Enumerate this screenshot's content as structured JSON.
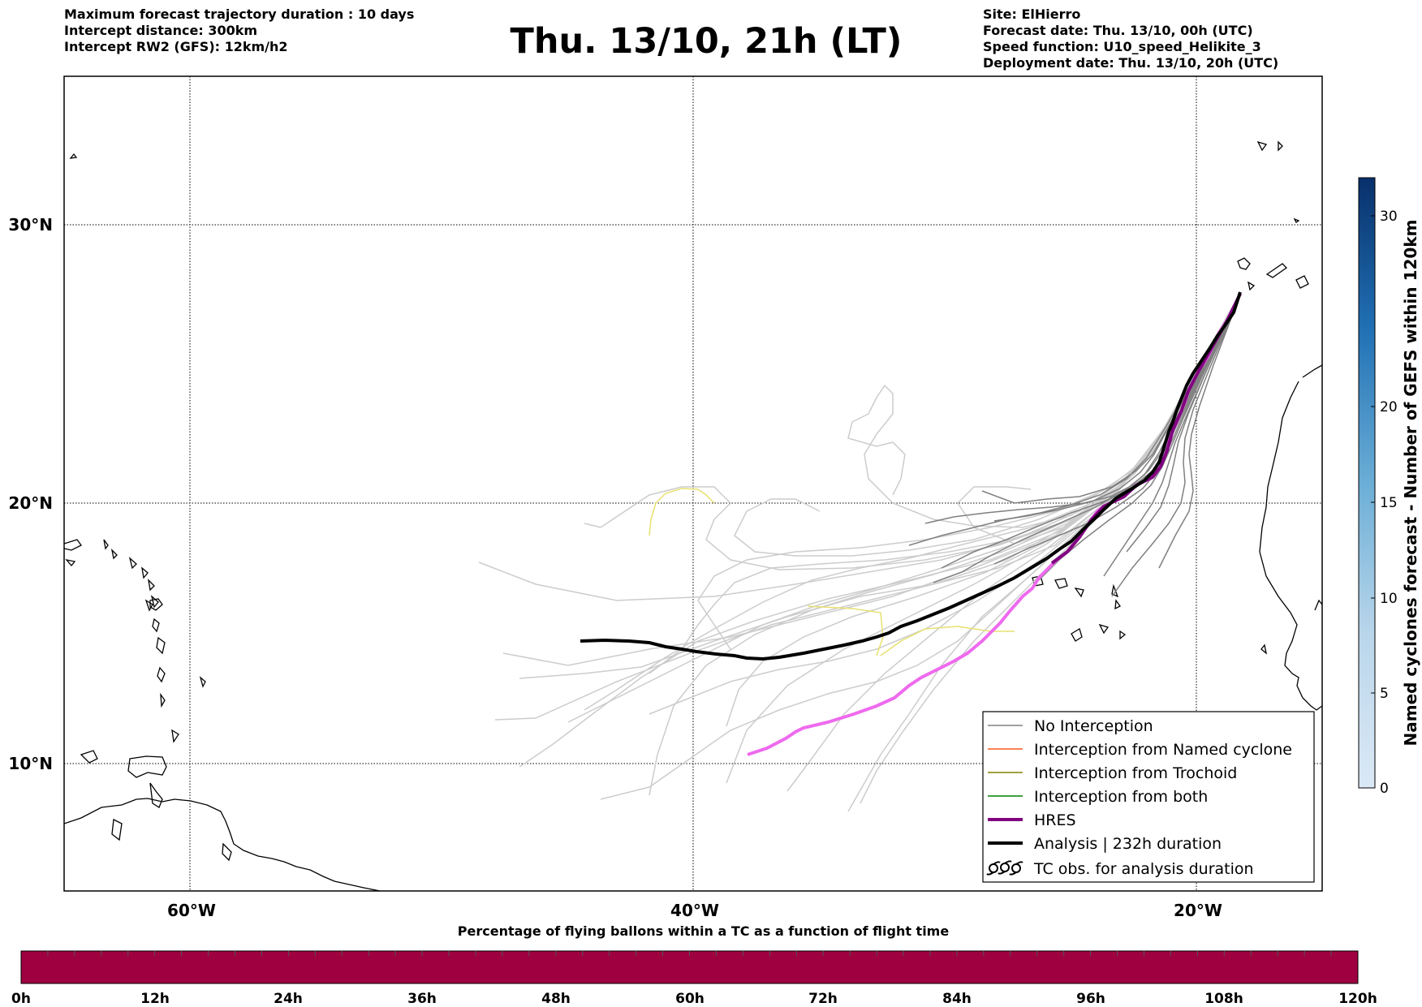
{
  "header": {
    "left_lines": [
      "Maximum forecast trajectory duration : 10 days",
      "Intercept distance: 300km",
      "Intercept RW2 (GFS):  12km/h2"
    ],
    "title": "Thu. 13/10, 21h (LT)",
    "right_lines": [
      "Site: ElHierro",
      "Forecast date: Thu. 13/10, 00h (UTC)",
      "Speed function: U10_speed_Helikite_3",
      "Deployment date: Thu. 13/10, 20h (UTC)"
    ]
  },
  "map": {
    "lat_labels": [
      "30°N",
      "20°N",
      "10°N"
    ],
    "lon_labels": [
      "60°W",
      "40°W",
      "20°W"
    ],
    "colors": {
      "no_interception": "#808080",
      "named_cyclone": "#ff5a1e",
      "trochoid": "#808000",
      "both": "#008000",
      "hres": "#800080",
      "hres_member": "#ee6aee",
      "analysis": "#000000",
      "light_member": "#cccccc",
      "yellow_member": "#e8e070"
    },
    "legend": [
      {
        "label": "No Interception",
        "icon": "thin-gray-line"
      },
      {
        "label": "Interception from Named cyclone",
        "icon": "thin-orange-line"
      },
      {
        "label": "Interception from Trochoid",
        "icon": "thin-olive-line"
      },
      {
        "label": "Interception from both",
        "icon": "thin-green-line"
      },
      {
        "label": "HRES",
        "icon": "thick-purple-line"
      },
      {
        "label": "Analysis | 232h duration",
        "icon": "thick-black-line"
      },
      {
        "label": "TC obs. for analysis duration",
        "icon": "cyclone-symbols",
        "symbol": "ἄ"
      }
    ]
  },
  "colorbar_right": {
    "label": "Named cyclones forecast - Number of GEFS within 120km",
    "ticks": [
      "0",
      "5",
      "10",
      "15",
      "20",
      "30"
    ]
  },
  "colorbar_bottom": {
    "title": "Percentage of flying ballons within a TC as a function of flight time",
    "ticks": [
      "0h",
      "12h",
      "24h",
      "36h",
      "48h",
      "60h",
      "72h",
      "84h",
      "96h",
      "108h",
      "120h"
    ],
    "fill_color": "#9e0040"
  }
}
